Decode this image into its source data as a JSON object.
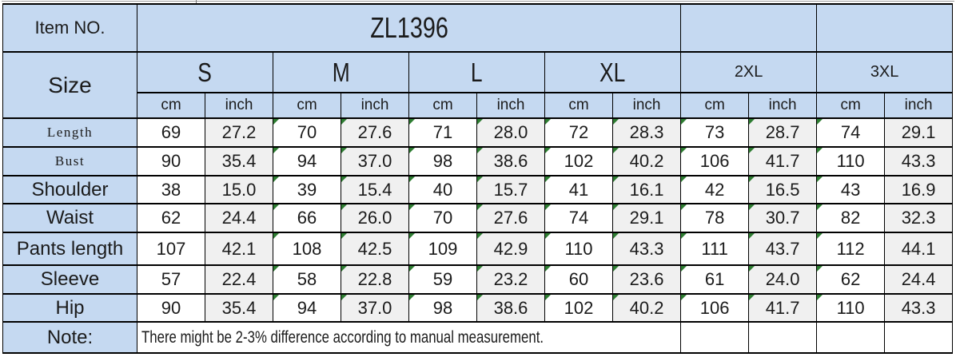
{
  "header": {
    "item_no_label": "Item NO.",
    "item_no_value": "ZL1396",
    "size_label": "Size",
    "sizes": [
      "S",
      "M",
      "L",
      "XL",
      "2XL",
      "3XL"
    ],
    "unit_cm": "cm",
    "unit_inch": "inch"
  },
  "table": {
    "columns_per_size": [
      "cm",
      "inch"
    ],
    "rows": [
      {
        "label": "Length",
        "values": [
          "69",
          "27.2",
          "70",
          "27.6",
          "71",
          "28.0",
          "72",
          "28.3",
          "73",
          "28.7",
          "74",
          "29.1"
        ]
      },
      {
        "label": "Bust",
        "values": [
          "90",
          "35.4",
          "94",
          "37.0",
          "98",
          "38.6",
          "102",
          "40.2",
          "106",
          "41.7",
          "110",
          "43.3"
        ]
      },
      {
        "label": "Shoulder",
        "values": [
          "38",
          "15.0",
          "39",
          "15.4",
          "40",
          "15.7",
          "41",
          "16.1",
          "42",
          "16.5",
          "43",
          "16.9"
        ]
      },
      {
        "label": "Waist",
        "values": [
          "62",
          "24.4",
          "66",
          "26.0",
          "70",
          "27.6",
          "74",
          "29.1",
          "78",
          "30.7",
          "82",
          "32.3"
        ]
      },
      {
        "label": "Pants length",
        "values": [
          "107",
          "42.1",
          "108",
          "42.5",
          "109",
          "42.9",
          "110",
          "43.3",
          "111",
          "43.7",
          "112",
          "44.1"
        ]
      },
      {
        "label": "Sleeve",
        "values": [
          "57",
          "22.4",
          "58",
          "22.8",
          "59",
          "23.2",
          "60",
          "23.6",
          "61",
          "24.0",
          "62",
          "24.4"
        ]
      },
      {
        "label": "Hip",
        "values": [
          "90",
          "35.4",
          "94",
          "37.0",
          "98",
          "38.6",
          "102",
          "40.2",
          "106",
          "41.7",
          "110",
          "43.3"
        ]
      }
    ],
    "serif_label_rows": [
      0,
      1
    ],
    "triangle_columns": [
      2,
      3,
      4,
      5,
      6,
      7,
      8,
      9,
      10
    ]
  },
  "note": {
    "label": "Note:",
    "text": "There might be 2-3% difference according to manual measurement."
  },
  "colors": {
    "header_blue": "#c5d9f1",
    "cell_white": "#ffffff",
    "cell_gray": "#f0f0f0",
    "border_black": "#000000",
    "error_triangle_green": "#2e7d32"
  }
}
